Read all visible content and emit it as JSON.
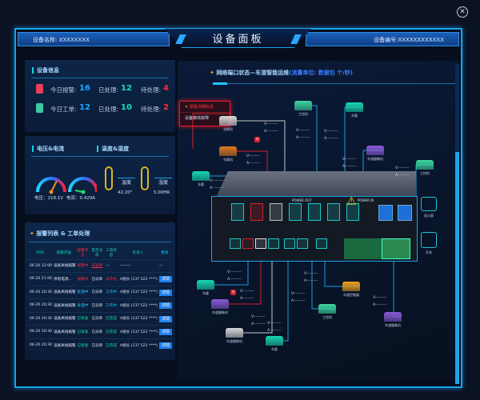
{
  "header": {
    "title": "设备面板",
    "device_name": "设备名称: XXXXXXXX",
    "device_no": "设备编号:XXXXXXXXXXXX"
  },
  "device_info": {
    "title": "设备信息",
    "rows": [
      {
        "icon": "alarm-light-icon",
        "label": "今日报警:",
        "value": "16",
        "done_label": "已处理:",
        "done": "12",
        "todo_label": "待处理:",
        "todo": "4"
      },
      {
        "icon": "clipboard-icon",
        "label": "今日工单:",
        "value": "12",
        "done_label": "已处理:",
        "done": "10",
        "todo_label": "待处理:",
        "todo": "2"
      }
    ]
  },
  "power": {
    "title": "电压&电流",
    "voltage": "电压：218.1V",
    "current": "电流：0.429A"
  },
  "env": {
    "title": "温度&湿度",
    "temp_label": "温度",
    "temp": "42.20°",
    "hum_label": "湿度",
    "hum": "5.00HR"
  },
  "alarms": {
    "title": "报警列表 & 工单处理",
    "columns": [
      "时间",
      "报警内容",
      "报警状态",
      "是否派单",
      "工单状态",
      "负责人",
      "更多"
    ],
    "rows": [
      [
        "06-20 22:00",
        "设备离线报警",
        "报警中",
        "未派单",
        "—",
        "———",
        "—"
      ],
      [
        "06-20 21:00",
        "供电电源...",
        "报警中",
        "已派单",
        "未开始",
        "A组长 (137 522 ****)",
        "详情"
      ],
      [
        "06-20 20:30",
        "设备离线报警",
        "处理中",
        "已派单",
        "工作中",
        "A组长 (137 522 ****)",
        "详情"
      ],
      [
        "06-20 20:30",
        "设备离线报警",
        "处理中",
        "已派单",
        "工作中",
        "A组长 (137 522 ****)",
        "详情"
      ],
      [
        "06-20 20:30",
        "设备离线报警",
        "已恢复",
        "已派单",
        "已完成",
        "A组长 (137 522 ****)",
        "详情"
      ],
      [
        "06-20 20:30",
        "设备离线报警",
        "已恢复",
        "已派单",
        "已完成",
        "A组长 (137 522 ****)",
        "详情"
      ],
      [
        "06-20 20:30",
        "设备离线报警",
        "已恢复",
        "已派单",
        "已完成",
        "A组长 (137 522 ****)",
        "详情"
      ]
    ]
  },
  "network": {
    "title": "网络端口状态—车道智能运维",
    "unit": "(流量单位: 数据包 个/秒)",
    "alert": {
      "title": "报警详细信息",
      "text": "设备离线故障"
    },
    "v": "V:--------",
    "a": "A:--------",
    "nodes": [
      "交换机",
      "工控机",
      "车载",
      "车载机",
      "车道摄像机",
      "工控机",
      "车载",
      "车载",
      "车道摄像机",
      "车道摄像机",
      "车载",
      "工控机",
      "车道控制器",
      "车道摄像机"
    ],
    "panel_labels": {
      "power_out": "POWER OUT",
      "power_in": "POWER IN",
      "rs_out": "RS OUT"
    },
    "side": [
      "显示屏",
      "开关"
    ]
  },
  "colors": {
    "accent": "#1aa3e8",
    "alarm": "#ff2a3a",
    "ok": "#17e0a0",
    "processing": "#1ecfff"
  }
}
